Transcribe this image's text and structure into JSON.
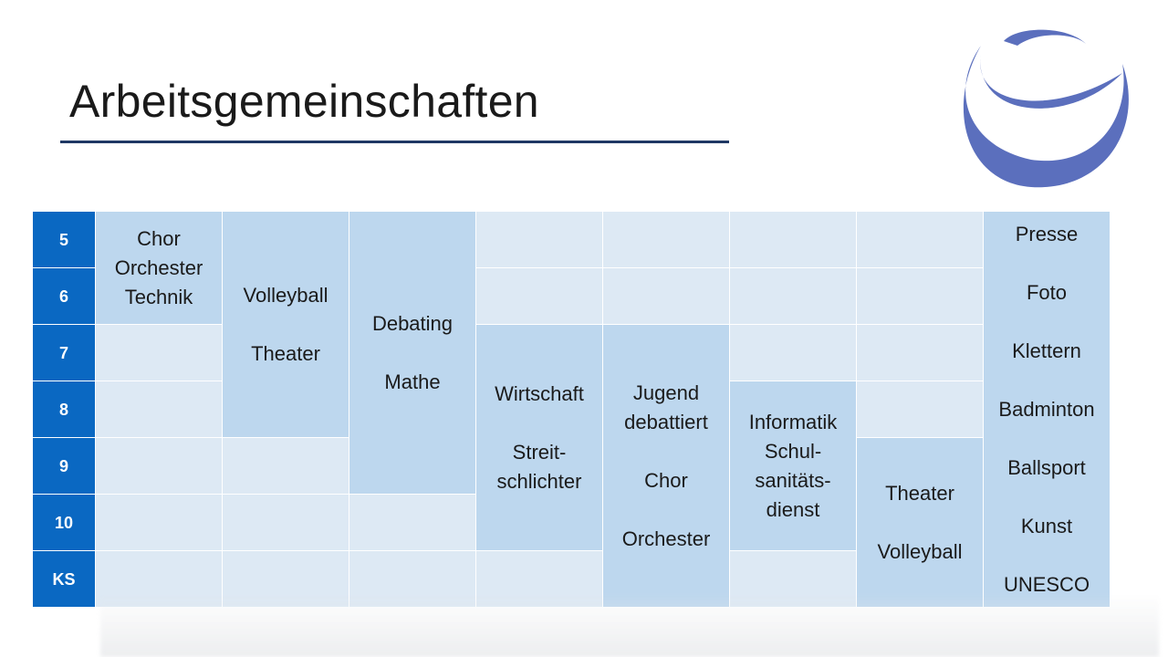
{
  "title": "Arbeitsgemeinschaften",
  "colors": {
    "grade_header": "#0a68c2",
    "filled_cell": "#bdd7ee",
    "empty_cell": "#dde9f4",
    "title_rule": "#1f3864",
    "logo": "#5b6fbd"
  },
  "logo_icon": "swirl-logo-icon",
  "grades": [
    "5",
    "6",
    "7",
    "8",
    "9",
    "10",
    "KS"
  ],
  "activities": {
    "chor_orchester_technik": "Chor\nOrchester\nTechnik",
    "volleyball_theater": "Volleyball\n\nTheater",
    "debating_mathe": "Debating\n\nMathe",
    "wirtschaft_streitschlichter": "Wirtschaft\n\nStreit-\nschlichter",
    "jugend_debattiert_chor_orchester": "Jugend\ndebattiert\n\nChor\n\nOrchester",
    "informatik_schulsanitaetsdienst": "Informatik\nSchul-\nsanitäts-\ndienst",
    "theater_volleyball": "Theater\n\nVolleyball",
    "all_grades": "Presse\n\nFoto\n\nKlettern\n\nBadminton\n\nBallsport\n\nKunst\n\nUNESCO"
  }
}
